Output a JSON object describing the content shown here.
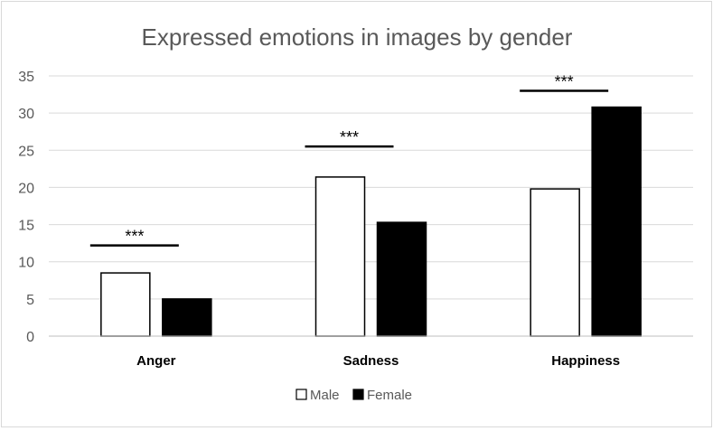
{
  "chart_data": {
    "type": "bar",
    "title": "Expressed emotions in images by gender",
    "xlabel": "",
    "ylabel": "",
    "categories": [
      "Anger",
      "Sadness",
      "Happiness"
    ],
    "series": [
      {
        "name": "Male",
        "values": [
          8.5,
          21.4,
          19.8
        ],
        "color": "#ffffff",
        "stroke": "#000000"
      },
      {
        "name": "Female",
        "values": [
          5.0,
          15.3,
          30.8
        ],
        "color": "#000000",
        "stroke": "#000000"
      }
    ],
    "ylim": [
      0,
      35
    ],
    "yticks": [
      0,
      5,
      10,
      15,
      20,
      25,
      30,
      35
    ],
    "ytick_labels": [
      "0",
      "5",
      "10",
      "15",
      "20",
      "25",
      "30",
      "35"
    ],
    "grid": true,
    "legend_position": "bottom",
    "annotations": [
      {
        "category": "Anger",
        "text": "***",
        "line_level": 12.2
      },
      {
        "category": "Sadness",
        "text": "***",
        "line_level": 25.5
      },
      {
        "category": "Happiness",
        "text": "***",
        "line_level": 33.0
      }
    ]
  }
}
